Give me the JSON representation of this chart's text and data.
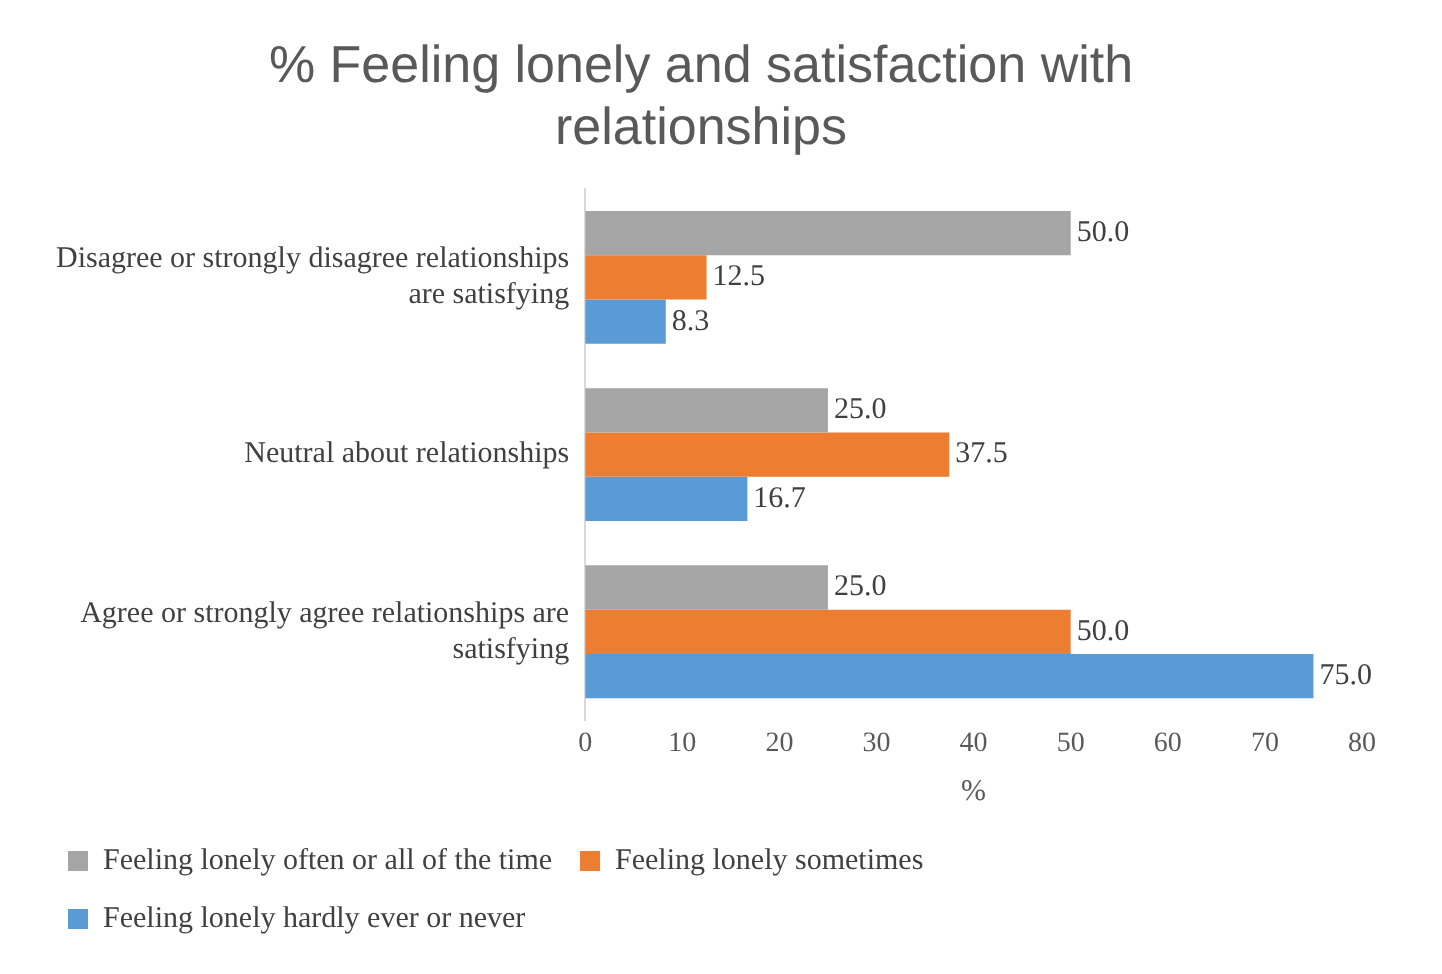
{
  "chart_data": {
    "type": "bar",
    "orientation": "horizontal",
    "title": "% Feeling lonely and satisfaction with relationships",
    "xlabel": "%",
    "categories": [
      "Disagree or strongly disagree relationships are satisfying",
      "Neutral about relationships",
      "Agree or strongly agree relationships are satisfying"
    ],
    "series": [
      {
        "name": "Feeling lonely often or all of the time",
        "color": "#a5a5a5",
        "values": [
          50,
          25,
          25
        ],
        "value_labels": [
          "50.0",
          "25.0",
          "25.0"
        ]
      },
      {
        "name": "Feeling lonely sometimes",
        "color": "#ed7d31",
        "values": [
          12.5,
          37.5,
          50
        ],
        "value_labels": [
          "12.5",
          "37.5",
          "50.0"
        ]
      },
      {
        "name": "Feeling lonely hardly ever or never",
        "color": "#5b9bd5",
        "values": [
          8.3,
          16.7,
          75
        ],
        "value_labels": [
          "8.3",
          "16.7",
          "75.0"
        ]
      }
    ],
    "xlim": [
      0,
      80
    ],
    "xticks": [
      0,
      10,
      20,
      30,
      40,
      50,
      60,
      70,
      80
    ],
    "grid": false,
    "legend": "bottom"
  }
}
